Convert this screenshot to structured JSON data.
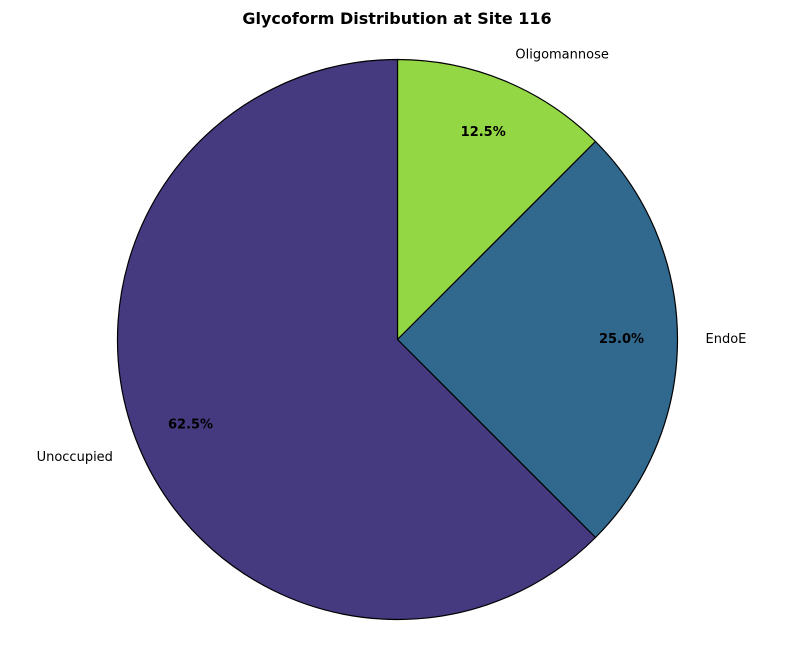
{
  "chart_data": {
    "type": "pie",
    "title": "Glycoform Distribution at Site 116",
    "start_angle_deg": 90,
    "direction": "clockwise",
    "slices": [
      {
        "label": "Oligomannose",
        "value": 12.5,
        "pct_label": "12.5%",
        "color": "#94d744"
      },
      {
        "label": "EndoE",
        "value": 25.0,
        "pct_label": "25.0%",
        "color": "#31688e"
      },
      {
        "label": "Unoccupied",
        "value": 62.5,
        "pct_label": "62.5%",
        "color": "#453a80"
      }
    ]
  }
}
